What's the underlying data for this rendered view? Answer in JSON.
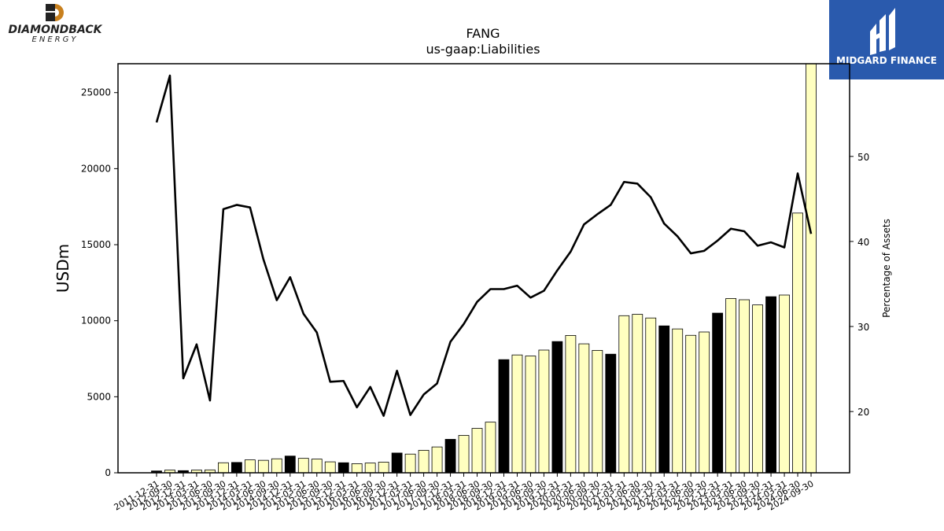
{
  "logos": {
    "left_name": "DIAMONDBACK",
    "left_sub": "ENERGY",
    "right_name": "MIDGARD FINANCE"
  },
  "colors": {
    "bar_fill_light": "#ffffc0",
    "bar_fill_dark": "#000000",
    "line": "#000000",
    "midgard_bg": "#2a5aad",
    "diamondback_orange": "#c8801e"
  },
  "chart_data": {
    "type": "bar",
    "title": "FANG",
    "subtitle": "us-gaap:Liabilities",
    "ylabel": "USDm",
    "y2label": "Percentage of Assets",
    "ylim": [
      0,
      26900
    ],
    "y2lim": [
      12.8,
      60.9
    ],
    "yticks": [
      0,
      5000,
      10000,
      15000,
      20000,
      25000
    ],
    "y2ticks": [
      20,
      30,
      40,
      50
    ],
    "grid": false,
    "categories": [
      "2011-12-31",
      "2012-09-30",
      "2012-12-31",
      "2013-03-31",
      "2013-06-30",
      "2013-09-30",
      "2013-12-31",
      "2014-03-31",
      "2014-06-30",
      "2014-09-30",
      "2014-12-31",
      "2015-03-31",
      "2015-06-30",
      "2015-09-30",
      "2015-12-31",
      "2016-03-31",
      "2016-06-30",
      "2016-09-30",
      "2016-12-31",
      "2017-03-31",
      "2017-06-30",
      "2017-09-30",
      "2017-12-31",
      "2018-03-31",
      "2018-06-30",
      "2018-09-30",
      "2018-12-31",
      "2019-03-31",
      "2019-06-30",
      "2019-09-30",
      "2019-12-31",
      "2020-03-31",
      "2020-06-30",
      "2020-09-30",
      "2020-12-31",
      "2021-03-31",
      "2021-06-30",
      "2021-09-30",
      "2021-12-31",
      "2022-03-31",
      "2022-06-30",
      "2022-09-30",
      "2022-12-31",
      "2023-03-31",
      "2023-06-30",
      "2023-09-30",
      "2023-12-31",
      "2024-03-31",
      "2024-06-30",
      "2024-09-30"
    ],
    "series": [
      {
        "kind": "bar",
        "values": [
          120,
          180,
          140,
          180,
          190,
          660,
          680,
          850,
          820,
          920,
          1100,
          950,
          900,
          720,
          660,
          600,
          640,
          700,
          1300,
          1230,
          1480,
          1700,
          2200,
          2460,
          2920,
          3330,
          7440,
          7750,
          7680,
          8070,
          8630,
          9030,
          8480,
          8050,
          7800,
          10330,
          10420,
          10180,
          9660,
          9460,
          9040,
          9260,
          10500,
          11460,
          11380,
          11040,
          11580,
          11690,
          17080,
          26900
        ],
        "dark": [
          true,
          false,
          true,
          false,
          false,
          false,
          true,
          false,
          false,
          false,
          true,
          false,
          false,
          false,
          true,
          false,
          false,
          false,
          true,
          false,
          false,
          false,
          true,
          false,
          false,
          false,
          true,
          false,
          false,
          false,
          true,
          false,
          false,
          false,
          true,
          false,
          false,
          false,
          true,
          false,
          false,
          false,
          true,
          false,
          false,
          false,
          true,
          false,
          false,
          false
        ]
      },
      {
        "kind": "line",
        "axis": "right",
        "values": [
          54.0,
          59.5,
          23.9,
          27.9,
          21.3,
          43.8,
          44.3,
          44.0,
          37.9,
          33.1,
          35.8,
          31.5,
          29.3,
          23.5,
          23.6,
          20.5,
          22.9,
          19.5,
          24.8,
          19.6,
          22.0,
          23.3,
          28.2,
          30.3,
          32.9,
          34.4,
          34.4,
          34.8,
          33.4,
          34.2,
          36.6,
          38.8,
          42.0,
          43.2,
          44.3,
          47.0,
          46.8,
          45.2,
          42.1,
          40.6,
          38.6,
          38.9,
          40.1,
          41.5,
          41.2,
          39.5,
          39.9,
          39.3,
          48.0,
          40.9
        ]
      }
    ]
  }
}
